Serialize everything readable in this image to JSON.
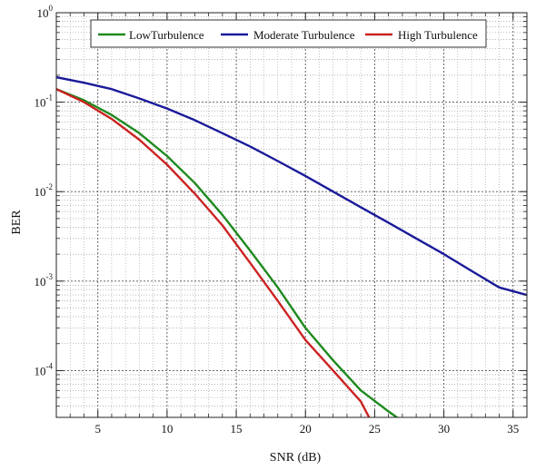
{
  "chart_data": {
    "type": "line",
    "title": "",
    "xlabel": "SNR (dB)",
    "ylabel": "BER",
    "y_scale": "log",
    "xlim": [
      2,
      36
    ],
    "ylim": [
      3e-05,
      1
    ],
    "grid": true,
    "legend_position": "top",
    "x_ticks": [
      5,
      10,
      15,
      20,
      25,
      30,
      35
    ],
    "x_tick_labels": [
      "5",
      "10",
      "15",
      "20",
      "25",
      "30",
      "35"
    ],
    "y_ticks": [
      0.0001,
      0.001,
      0.01,
      0.1,
      1
    ],
    "y_tick_labels": [
      {
        "base": "10",
        "exp": "-4"
      },
      {
        "base": "10",
        "exp": "-3"
      },
      {
        "base": "10",
        "exp": "-2"
      },
      {
        "base": "10",
        "exp": "-1"
      },
      {
        "base": "10",
        "exp": "0"
      }
    ],
    "series": [
      {
        "name": "LowTurbulence",
        "color": "#1e8a1e",
        "x": [
          2,
          4,
          6,
          8,
          10,
          12,
          14,
          16,
          18,
          20,
          22,
          24,
          26,
          26.6
        ],
        "y": [
          0.14,
          0.105,
          0.072,
          0.045,
          0.025,
          0.0125,
          0.0055,
          0.0022,
          0.00085,
          0.0003,
          0.00013,
          6e-05,
          3.5e-05,
          3e-05
        ]
      },
      {
        "name": "Moderate Turbulence",
        "color": "#1a1a9a",
        "x": [
          2,
          4,
          6,
          8,
          10,
          12,
          14,
          16,
          18,
          20,
          22,
          24,
          26,
          28,
          30,
          32,
          34,
          36
        ],
        "y": [
          0.19,
          0.165,
          0.14,
          0.11,
          0.085,
          0.063,
          0.045,
          0.032,
          0.022,
          0.015,
          0.01,
          0.0067,
          0.0045,
          0.003,
          0.002,
          0.0013,
          0.00085,
          0.0007
        ]
      },
      {
        "name": "High Turbulence",
        "color": "#cc2222",
        "x": [
          2,
          4,
          6,
          8,
          10,
          12,
          14,
          16,
          18,
          20,
          22,
          24,
          24.6
        ],
        "y": [
          0.14,
          0.1,
          0.065,
          0.038,
          0.02,
          0.0095,
          0.0042,
          0.0016,
          0.0006,
          0.00022,
          0.0001,
          4.5e-05,
          3e-05
        ]
      }
    ]
  }
}
